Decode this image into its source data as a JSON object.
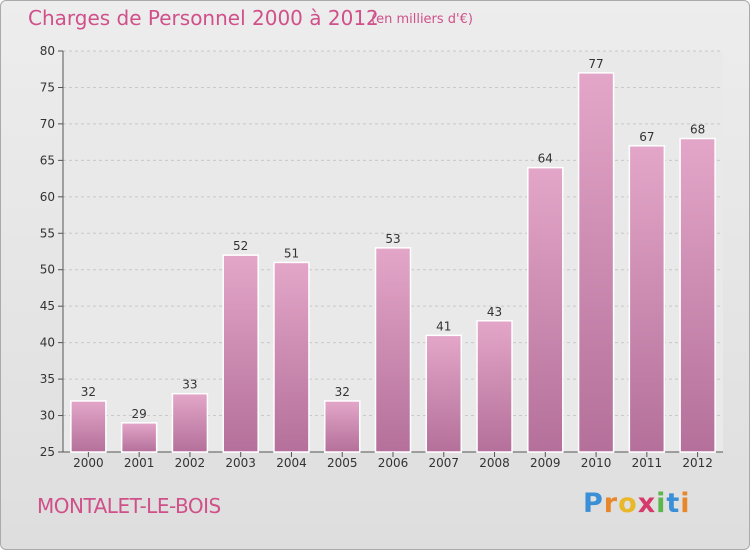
{
  "header": {
    "title": "Charges de Personnel 2000 à 2012",
    "subtitle": "(en milliers d'€)"
  },
  "footer": {
    "place": "MONTALET-LE-BOIS",
    "logo_letters": [
      "P",
      "r",
      "o",
      "x",
      "i",
      "t",
      "i"
    ],
    "logo_colors": [
      "#3a8fd6",
      "#e8872a",
      "#e8b82a",
      "#d63a6a",
      "#5ab84a",
      "#3a8fd6",
      "#e8872a"
    ]
  },
  "chart_data": {
    "type": "bar",
    "categories": [
      "2000",
      "2001",
      "2002",
      "2003",
      "2004",
      "2005",
      "2006",
      "2007",
      "2008",
      "2009",
      "2010",
      "2011",
      "2012"
    ],
    "values": [
      32,
      29,
      33,
      52,
      51,
      32,
      53,
      41,
      43,
      64,
      77,
      67,
      68
    ],
    "data_labels": [
      "32",
      "29",
      "33",
      "52",
      "51",
      "32",
      "53",
      "41",
      "43",
      "64",
      "77",
      "67",
      "68"
    ],
    "y_ticks": [
      25,
      30,
      35,
      40,
      45,
      50,
      55,
      60,
      65,
      70,
      75,
      80
    ],
    "ylim": [
      25,
      80
    ],
    "grid": true,
    "colors": {
      "bar_top": "#e3a6c8",
      "bar_bottom": "#b4709a",
      "text": "#333333",
      "grid": "#c8c8c8"
    }
  }
}
